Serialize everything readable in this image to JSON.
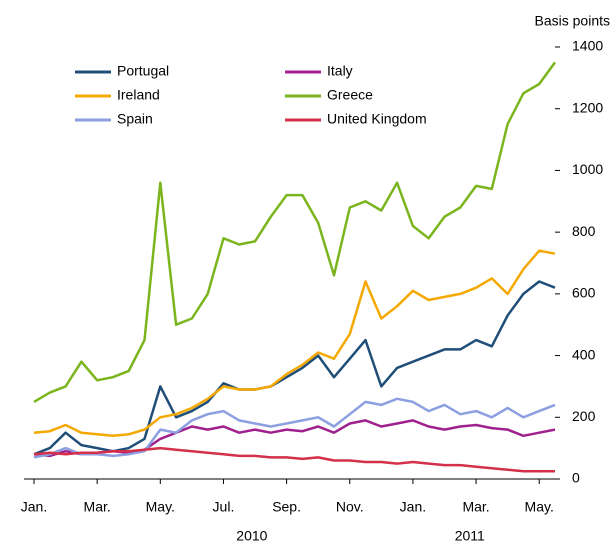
{
  "chart_data": {
    "type": "line",
    "y_axis_label": "Basis points",
    "x": [
      0,
      0.5,
      1,
      1.5,
      2,
      2.5,
      3,
      3.5,
      4,
      4.5,
      5,
      5.5,
      6,
      6.5,
      7,
      7.5,
      8,
      8.5,
      9,
      9.5,
      10,
      10.5,
      11,
      11.5,
      12,
      12.5,
      13,
      13.5,
      14,
      14.5,
      15,
      15.5,
      16,
      16.5
    ],
    "xlim": [
      0,
      16.5
    ],
    "xticks": [
      {
        "value": 0,
        "label": "Jan."
      },
      {
        "value": 2,
        "label": "Mar."
      },
      {
        "value": 4,
        "label": "May."
      },
      {
        "value": 6,
        "label": "Jul."
      },
      {
        "value": 8,
        "label": "Sep."
      },
      {
        "value": 10,
        "label": "Nov."
      },
      {
        "value": 12,
        "label": "Jan."
      },
      {
        "value": 14,
        "label": "Mar."
      },
      {
        "value": 16,
        "label": "May."
      }
    ],
    "year_labels": [
      {
        "value": 6.9,
        "label": "2010"
      },
      {
        "value": 13.8,
        "label": "2011"
      }
    ],
    "ylim": [
      0,
      1400
    ],
    "yticks": [
      0,
      200,
      400,
      600,
      800,
      1000,
      1200,
      1400
    ],
    "series": [
      {
        "name": "Portugal",
        "color": "#1f4e79",
        "values": [
          80,
          100,
          150,
          110,
          100,
          90,
          100,
          130,
          300,
          200,
          220,
          250,
          310,
          290,
          290,
          300,
          330,
          360,
          400,
          330,
          390,
          450,
          300,
          360,
          380,
          400,
          420,
          420,
          450,
          430,
          530,
          600,
          640,
          620
        ]
      },
      {
        "name": "Italy",
        "color": "#a0208e",
        "values": [
          80,
          75,
          90,
          80,
          85,
          90,
          85,
          95,
          130,
          150,
          170,
          160,
          170,
          150,
          160,
          150,
          160,
          155,
          170,
          150,
          180,
          190,
          170,
          180,
          190,
          170,
          160,
          170,
          175,
          165,
          160,
          140,
          150,
          160
        ]
      },
      {
        "name": "Ireland",
        "color": "#f5a800",
        "values": [
          150,
          155,
          175,
          150,
          145,
          140,
          145,
          160,
          200,
          210,
          230,
          260,
          300,
          290,
          290,
          300,
          340,
          370,
          410,
          390,
          470,
          640,
          520,
          560,
          610,
          580,
          590,
          600,
          620,
          650,
          600,
          680,
          740,
          730
        ]
      },
      {
        "name": "Greece",
        "color": "#7ab51d",
        "values": [
          250,
          280,
          300,
          380,
          320,
          330,
          350,
          450,
          960,
          500,
          520,
          600,
          780,
          760,
          770,
          850,
          920,
          920,
          830,
          660,
          880,
          900,
          870,
          960,
          820,
          780,
          850,
          880,
          950,
          940,
          1150,
          1250,
          1280,
          1350
        ]
      },
      {
        "name": "Spain",
        "color": "#8c9fe0",
        "values": [
          70,
          80,
          100,
          80,
          80,
          75,
          80,
          90,
          160,
          150,
          190,
          210,
          220,
          190,
          180,
          170,
          180,
          190,
          200,
          170,
          210,
          250,
          240,
          260,
          250,
          220,
          240,
          210,
          220,
          200,
          230,
          200,
          220,
          240
        ]
      },
      {
        "name": "United Kingdom",
        "color": "#d4304a",
        "values": [
          80,
          85,
          80,
          85,
          85,
          90,
          90,
          95,
          100,
          95,
          90,
          85,
          80,
          75,
          75,
          70,
          70,
          65,
          70,
          60,
          60,
          55,
          55,
          50,
          55,
          50,
          45,
          45,
          40,
          35,
          30,
          25,
          25,
          25
        ]
      }
    ]
  }
}
